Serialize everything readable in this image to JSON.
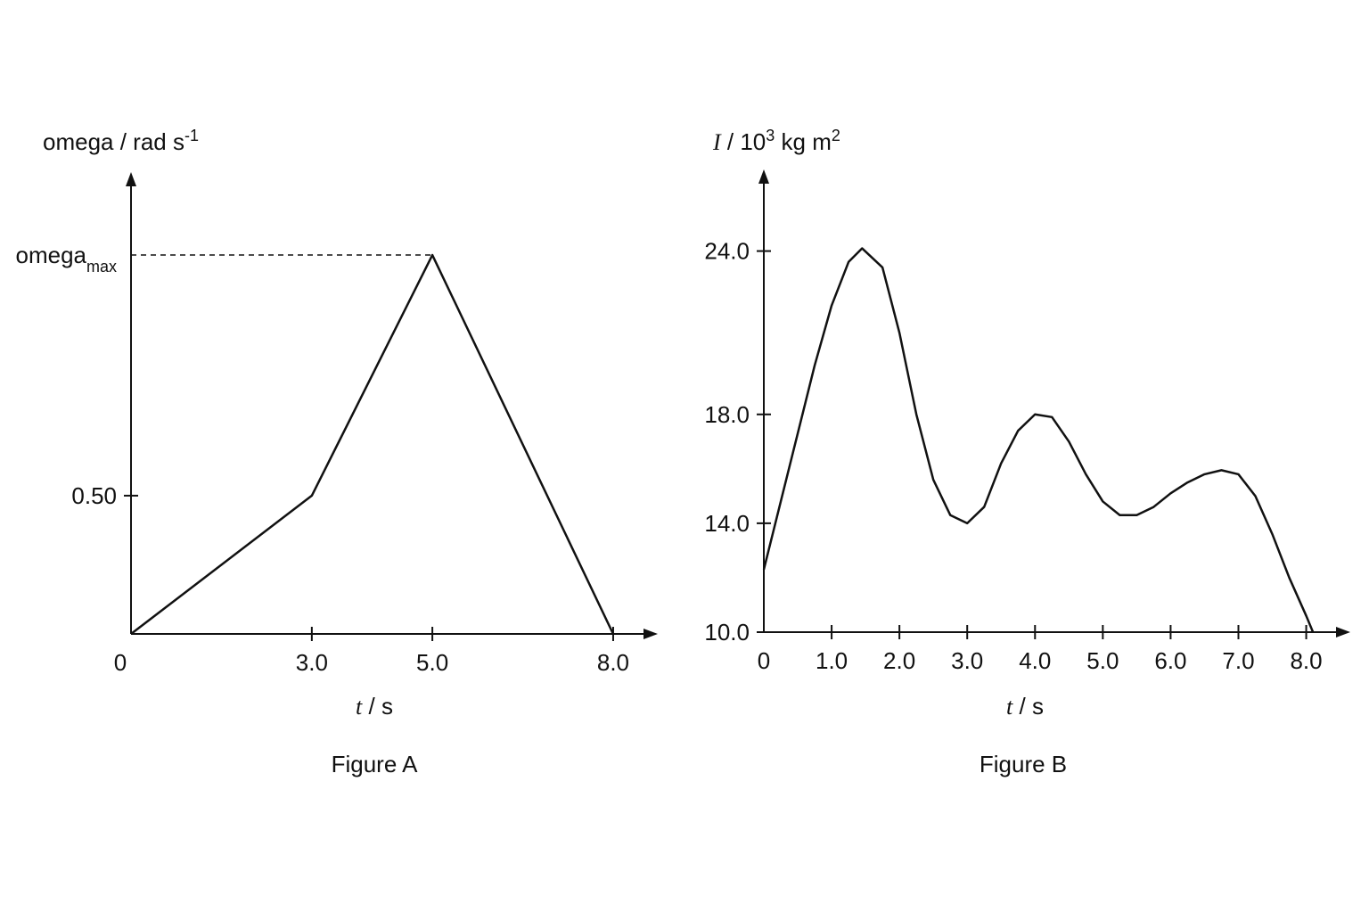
{
  "chart_data": [
    {
      "type": "line",
      "title": "Figure A",
      "x_label": [
        {
          "text": "t",
          "style": "italic"
        },
        {
          "text": " / s"
        }
      ],
      "y_label": [
        {
          "text": "omega / rad s"
        },
        {
          "text": "-1",
          "style": "sup"
        }
      ],
      "xlim": [
        0,
        8.74
      ],
      "ylim": [
        0,
        1.67
      ],
      "xticks": [
        0,
        {
          "value": 3,
          "label": "3.0"
        },
        {
          "value": 5,
          "label": "5.0"
        },
        {
          "value": 8,
          "label": "8.0"
        }
      ],
      "yticks": [
        {
          "value": 0.5,
          "label": "0.50"
        },
        {
          "value": 1.37,
          "label": "omega",
          "subscript": "max",
          "dashed": true
        }
      ],
      "x": [
        0,
        3,
        5,
        8
      ],
      "series": [
        {
          "color": "#111111",
          "values": [
            0,
            0.5,
            1.37,
            0
          ]
        }
      ]
    },
    {
      "type": "line",
      "title": "Figure B",
      "x_label": [
        {
          "text": "t",
          "style": "italic"
        },
        {
          "text": " / s"
        }
      ],
      "y_label": [
        {
          "text": "I",
          "style": "italic"
        },
        {
          "text": " / 10"
        },
        {
          "text": "3",
          "style": "sup"
        },
        {
          "text": " kg m"
        },
        {
          "text": "2",
          "style": "sup"
        }
      ],
      "xlim": [
        0,
        8.65
      ],
      "ylim": [
        10,
        27
      ],
      "xticks": [
        0,
        {
          "value": 1,
          "label": "1.0"
        },
        {
          "value": 2,
          "label": "2.0"
        },
        {
          "value": 3,
          "label": "3.0"
        },
        {
          "value": 4,
          "label": "4.0"
        },
        {
          "value": 5,
          "label": "5.0"
        },
        {
          "value": 6,
          "label": "6.0"
        },
        {
          "value": 7,
          "label": "7.0"
        },
        {
          "value": 8,
          "label": "8.0"
        }
      ],
      "yticks": [
        {
          "value": 10,
          "label": "10.0"
        },
        {
          "value": 14,
          "label": "14.0"
        },
        {
          "value": 18,
          "label": "18.0"
        },
        {
          "value": 24,
          "label": "24.0"
        }
      ],
      "x": [
        0,
        0.25,
        0.5,
        0.75,
        1.0,
        1.25,
        1.45,
        1.75,
        2.0,
        2.25,
        2.5,
        2.75,
        3.0,
        3.25,
        3.5,
        3.75,
        4.0,
        4.25,
        4.5,
        4.75,
        5.0,
        5.25,
        5.5,
        5.75,
        6.0,
        6.25,
        6.5,
        6.75,
        7.0,
        7.25,
        7.5,
        7.75,
        8.0,
        8.1
      ],
      "series": [
        {
          "color": "#111111",
          "values": [
            12.3,
            14.8,
            17.3,
            19.8,
            22.0,
            23.6,
            24.1,
            23.4,
            21.0,
            18.0,
            15.6,
            14.3,
            14.0,
            14.6,
            16.2,
            17.4,
            18.0,
            17.9,
            17.0,
            15.8,
            14.8,
            14.3,
            14.3,
            14.6,
            15.1,
            15.5,
            15.8,
            15.95,
            15.8,
            15.0,
            13.6,
            12.0,
            10.6,
            10.0
          ]
        }
      ]
    }
  ]
}
